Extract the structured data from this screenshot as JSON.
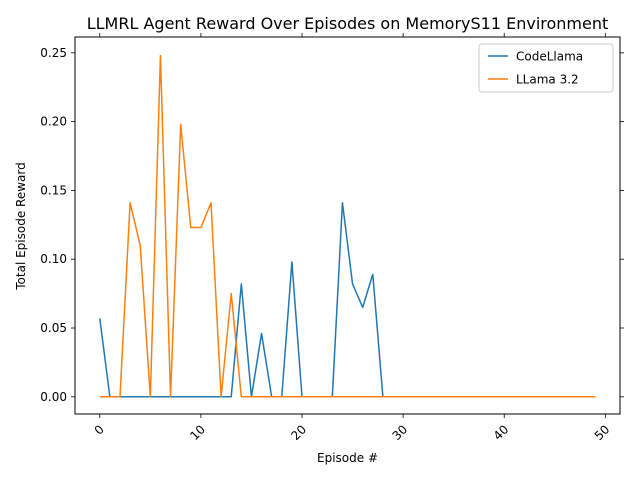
{
  "chart_data": {
    "type": "line",
    "title": "LLMRL Agent Reward Over Episodes on MemoryS11 Environment",
    "xlabel": "Episode #",
    "ylabel": "Total Episode Reward",
    "xlim": [
      -2.45,
      51.45
    ],
    "ylim": [
      -0.0125,
      0.2615
    ],
    "xticks": [
      0,
      10,
      20,
      30,
      40,
      50
    ],
    "xtick_labels": [
      "0",
      "10",
      "20",
      "30",
      "40",
      "50"
    ],
    "xtick_rotation_deg": 45,
    "yticks": [
      0.0,
      0.05,
      0.1,
      0.15,
      0.2,
      0.25
    ],
    "ytick_labels": [
      "0.00",
      "0.05",
      "0.10",
      "0.15",
      "0.20",
      "0.25"
    ],
    "grid": false,
    "legend": "top-right",
    "colors": {
      "CodeLlama": "#1f77b4",
      "LLama 3.2": "#ff7f0e"
    },
    "series": [
      {
        "name": "CodeLlama",
        "x": [
          0,
          1,
          2,
          3,
          4,
          5,
          6,
          7,
          8,
          9,
          10,
          11,
          12,
          13,
          14,
          15,
          16,
          17,
          18,
          19,
          20,
          21,
          22,
          23,
          24,
          25,
          26,
          27,
          28,
          29,
          30,
          31,
          32,
          33,
          34,
          35,
          36,
          37,
          38,
          39,
          40,
          41,
          42,
          43,
          44,
          45,
          46,
          47,
          48,
          49
        ],
        "values": [
          0.057,
          0,
          0,
          0,
          0,
          0,
          0,
          0,
          0,
          0,
          0,
          0,
          0,
          0,
          0.082,
          0,
          0.046,
          0,
          0,
          0.098,
          0,
          0,
          0,
          0,
          0.141,
          0.082,
          0.065,
          0.089,
          0,
          0,
          0,
          0,
          0,
          0,
          0,
          0,
          0,
          0,
          0,
          0,
          0,
          0,
          0,
          0,
          0,
          0,
          0,
          0,
          0,
          0
        ]
      },
      {
        "name": "LLama 3.2",
        "x": [
          0,
          1,
          2,
          3,
          4,
          5,
          6,
          7,
          8,
          9,
          10,
          11,
          12,
          13,
          14,
          15,
          16,
          17,
          18,
          19,
          20,
          21,
          22,
          23,
          24,
          25,
          26,
          27,
          28,
          29,
          30,
          31,
          32,
          33,
          34,
          35,
          36,
          37,
          38,
          39,
          40,
          41,
          42,
          43,
          44,
          45,
          46,
          47,
          48,
          49
        ],
        "values": [
          0,
          0,
          0,
          0.141,
          0.11,
          0,
          0.248,
          0,
          0.198,
          0.123,
          0.123,
          0.141,
          0,
          0.075,
          0,
          0,
          0,
          0,
          0,
          0,
          0,
          0,
          0,
          0,
          0,
          0,
          0,
          0,
          0,
          0,
          0,
          0,
          0,
          0,
          0,
          0,
          0,
          0,
          0,
          0,
          0,
          0,
          0,
          0,
          0,
          0,
          0,
          0,
          0,
          0
        ]
      }
    ]
  }
}
